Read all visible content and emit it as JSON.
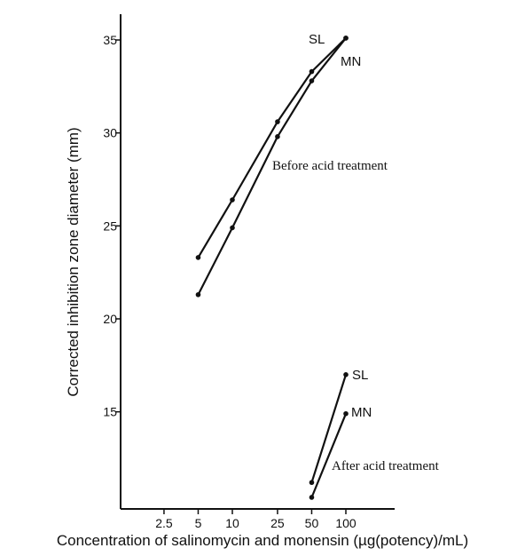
{
  "chart_data": {
    "type": "line",
    "title": "",
    "xlabel": "Concentration of salinomycin and monensin (µg(potency)/mL)",
    "ylabel": "Corrected inhibition zone diameter (mm)",
    "x_scale": "log",
    "x_ticks": [
      {
        "value": 2.5,
        "label": "2.5"
      },
      {
        "value": 5,
        "label": "5"
      },
      {
        "value": 10,
        "label": "10"
      },
      {
        "value": 25,
        "label": "25"
      },
      {
        "value": 50,
        "label": "50"
      },
      {
        "value": 100,
        "label": "100"
      }
    ],
    "y_ticks": [
      {
        "value": 15,
        "label": "15"
      },
      {
        "value": 20,
        "label": "20"
      },
      {
        "value": 25,
        "label": "25"
      },
      {
        "value": 30,
        "label": "30"
      },
      {
        "value": 35,
        "label": "35"
      }
    ],
    "xlim": [
      1.1,
      250
    ],
    "ylim": [
      10,
      36.5
    ],
    "grid": false,
    "series": [
      {
        "name": "SL",
        "group": "before",
        "x": [
          5,
          10,
          25,
          50,
          100
        ],
        "y": [
          23.3,
          26.4,
          30.6,
          33.3,
          35.1
        ]
      },
      {
        "name": "MN",
        "group": "before",
        "x": [
          5,
          10,
          25,
          50,
          100
        ],
        "y": [
          21.3,
          24.9,
          29.8,
          32.8,
          35.1
        ]
      },
      {
        "name": "SL",
        "group": "after",
        "x": [
          50,
          100
        ],
        "y": [
          11.2,
          17.0
        ]
      },
      {
        "name": "MN",
        "group": "after",
        "x": [
          50,
          100
        ],
        "y": [
          10.4,
          14.9
        ]
      }
    ],
    "annotations": [
      {
        "text": "Before acid treatment"
      },
      {
        "text": "After acid treatment"
      }
    ]
  }
}
